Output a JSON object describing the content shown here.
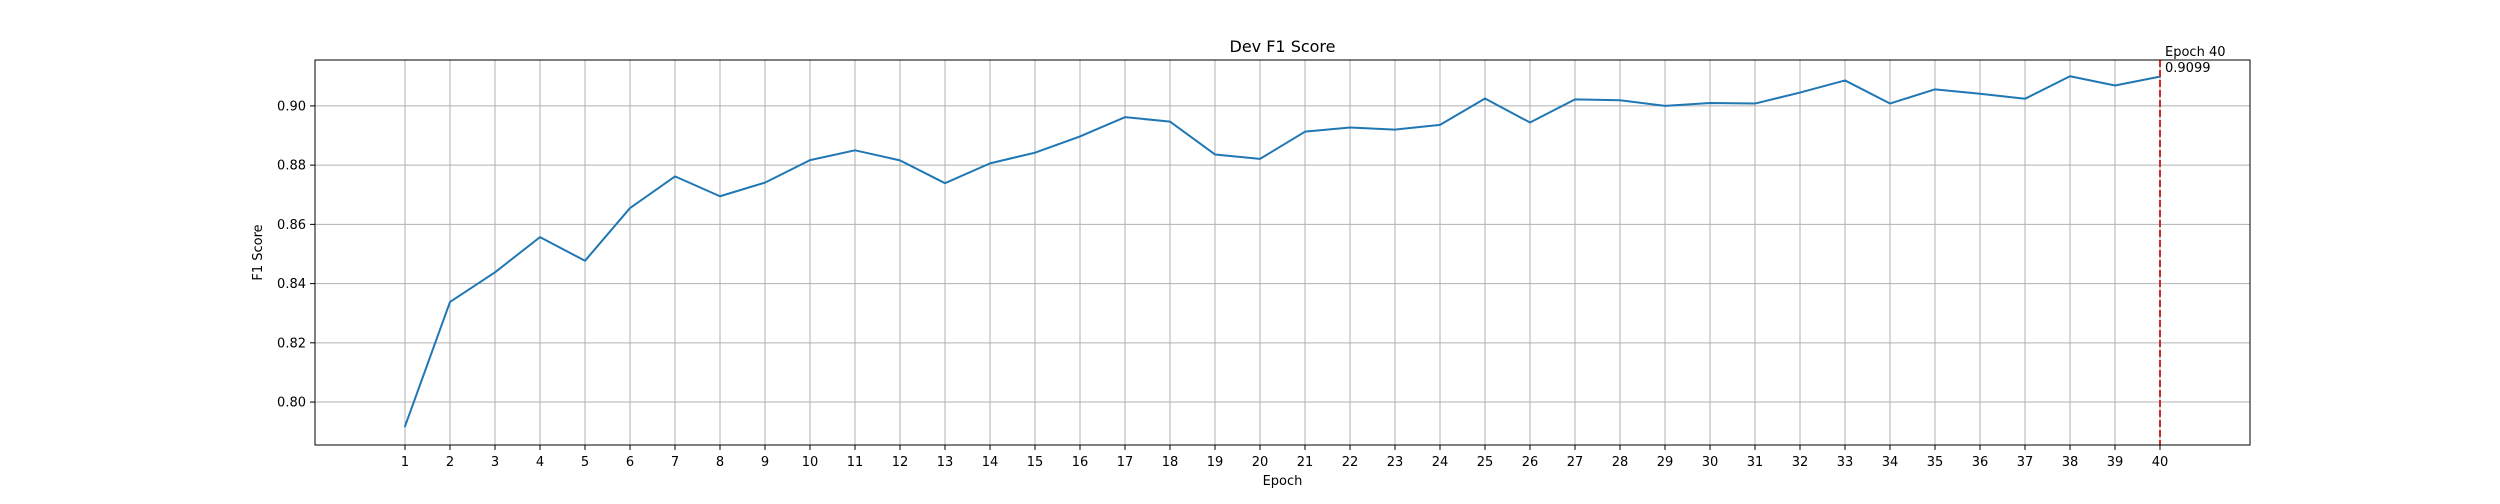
{
  "chart_data": {
    "type": "line",
    "title": "Dev F1 Score",
    "xlabel": "Epoch",
    "ylabel": "F1 Score",
    "x": [
      1,
      2,
      3,
      4,
      5,
      6,
      7,
      8,
      9,
      10,
      11,
      12,
      13,
      14,
      15,
      16,
      17,
      18,
      19,
      20,
      21,
      22,
      23,
      24,
      25,
      26,
      27,
      28,
      29,
      30,
      31,
      32,
      33,
      34,
      35,
      36,
      37,
      38,
      39,
      40
    ],
    "series": [
      {
        "color": "#1f77b4",
        "values": [
          0.7918,
          0.8338,
          0.8438,
          0.8557,
          0.8477,
          0.8655,
          0.8762,
          0.8695,
          0.8741,
          0.8817,
          0.885,
          0.8816,
          0.8739,
          0.8806,
          0.8842,
          0.8897,
          0.8962,
          0.8947,
          0.8836,
          0.8821,
          0.8913,
          0.8927,
          0.892,
          0.8936,
          0.9025,
          0.8944,
          0.9022,
          0.9019,
          0.9,
          0.901,
          0.9008,
          0.9045,
          0.9086,
          0.9008,
          0.9056,
          0.9041,
          0.9024,
          0.91,
          0.9069,
          0.9099
        ]
      }
    ],
    "xlim": [
      -1,
      42
    ],
    "ylim": [
      0.7855,
      0.9155
    ],
    "yticks": [
      "0.80",
      "0.82",
      "0.84",
      "0.86",
      "0.88",
      "0.90"
    ],
    "xticks": [
      "1",
      "2",
      "3",
      "4",
      "5",
      "6",
      "7",
      "8",
      "9",
      "10",
      "11",
      "12",
      "13",
      "14",
      "15",
      "16",
      "17",
      "18",
      "19",
      "20",
      "21",
      "22",
      "23",
      "24",
      "25",
      "26",
      "27",
      "28",
      "29",
      "30",
      "31",
      "32",
      "33",
      "34",
      "35",
      "36",
      "37",
      "38",
      "39",
      "40"
    ],
    "grid": true,
    "marker_line": {
      "x": 40,
      "color": "#d62728",
      "style": "dashed",
      "label_line1": "Epoch 40",
      "label_line2": "0.9099"
    }
  }
}
